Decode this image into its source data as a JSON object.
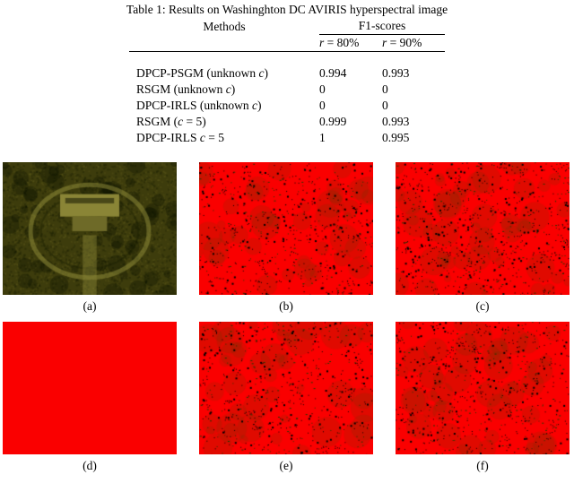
{
  "table": {
    "title": "Table 1: Results on Washinghton DC AVIRIS hyperspectral image",
    "col_methods": "Methods",
    "col_f1": "F1-scores",
    "sub_r80": "r = 80%",
    "sub_r90": "r = 90%",
    "rows": [
      {
        "method": "DPCP-PSGM (unknown c)",
        "r80": "0.994",
        "r90": "0.993"
      },
      {
        "method": "RSGM (unknown c)",
        "r80": "0",
        "r90": "0"
      },
      {
        "method": "DPCP-IRLS (unknown c)",
        "r80": "0",
        "r90": "0"
      },
      {
        "method": "RSGM (c = 5)",
        "r80": "0.999",
        "r90": "0.993"
      },
      {
        "method": "DPCP-IRLS c = 5",
        "r80": "1",
        "r90": "0.995"
      }
    ]
  },
  "figures": {
    "panels": [
      {
        "id": "a",
        "caption": "(a)",
        "type": "aerial"
      },
      {
        "id": "b",
        "caption": "(b)",
        "type": "speckle",
        "seed": 21,
        "density": 1.0
      },
      {
        "id": "c",
        "caption": "(c)",
        "type": "speckle",
        "seed": 37,
        "density": 1.2
      },
      {
        "id": "d",
        "caption": "(d)",
        "type": "solid"
      },
      {
        "id": "e",
        "caption": "(e)",
        "type": "speckle",
        "seed": 53,
        "density": 1.0
      },
      {
        "id": "f",
        "caption": "(f)",
        "type": "speckle",
        "seed": 71,
        "density": 1.05
      }
    ]
  },
  "colors": {
    "red": "#fa0000",
    "speckle_black": "#000000",
    "speckle_green": "#1d3b00",
    "olive_base": "#3d3c0c",
    "olive_light": "#8a8536",
    "olive_mid": "#6e6a28"
  }
}
